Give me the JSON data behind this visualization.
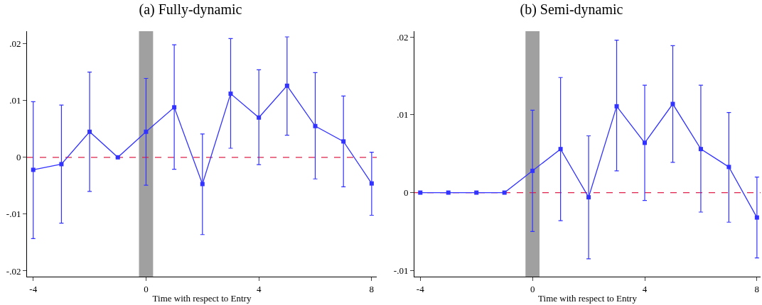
{
  "chart_data": [
    {
      "type": "line",
      "title": "(a) Fully-dynamic",
      "xlabel": "Time with respect to Entry",
      "x": [
        -4,
        -3,
        -2,
        -1,
        0,
        1,
        2,
        3,
        4,
        5,
        6,
        7,
        8
      ],
      "series": [
        {
          "color": "#3333ff",
          "values": [
            -0.0022,
            -0.0012,
            0.0045,
            0,
            0.0045,
            0.0088,
            -0.0047,
            0.0112,
            0.007,
            0.0126,
            0.0055,
            0.0028,
            -0.0046
          ],
          "errors": [
            [
              -0.0143,
              0.0098
            ],
            [
              -0.0116,
              0.0092
            ],
            [
              -0.006,
              0.015
            ],
            null,
            [
              -0.0049,
              0.0139
            ],
            [
              -0.0021,
              0.0198
            ],
            [
              -0.0136,
              0.0041
            ],
            [
              0.0016,
              0.0209
            ],
            [
              -0.0013,
              0.0154
            ],
            [
              0.0039,
              0.0212
            ],
            [
              -0.0038,
              0.0149
            ],
            [
              -0.0052,
              0.0108
            ],
            [
              -0.0102,
              0.0009
            ]
          ]
        }
      ],
      "marker": "square",
      "line_style": "solid",
      "xlim": [
        -4.22,
        8.18
      ],
      "xticks": [
        -4,
        0,
        4,
        8
      ],
      "ylim": [
        -0.021,
        0.0222
      ],
      "yticks": [
        {
          "value": -0.02,
          "label": "-.02"
        },
        {
          "value": -0.01,
          "label": "-.01"
        },
        0,
        {
          "value": 0.01,
          "label": ".01"
        },
        {
          "value": 0.02,
          "label": ".02"
        }
      ],
      "ref_lines": [
        {
          "axis": "y",
          "value": 0,
          "color": "#e0204a",
          "line_style": "dashed"
        }
      ],
      "bands": [
        {
          "axis": "x",
          "from": -0.25,
          "to": 0.25,
          "color": "#a0a0a0"
        }
      ]
    },
    {
      "type": "line",
      "title": "(b) Semi-dynamic",
      "xlabel": "Time with respect to Entry",
      "x": [
        -4,
        -3,
        -2,
        -1,
        0,
        1,
        2,
        3,
        4,
        5,
        6,
        7,
        8
      ],
      "series": [
        {
          "color": "#3333ff",
          "values": [
            0,
            0,
            0,
            0,
            0.0028,
            0.0056,
            -0.0006,
            0.0111,
            0.0064,
            0.0114,
            0.0056,
            0.0033,
            -0.0032
          ],
          "errors": [
            null,
            null,
            null,
            null,
            [
              -0.005,
              0.0106
            ],
            [
              -0.0036,
              0.0148
            ],
            [
              -0.0085,
              0.0073
            ],
            [
              0.0028,
              0.0196
            ],
            [
              -0.001,
              0.0138
            ],
            [
              0.0039,
              0.0189
            ],
            [
              -0.0025,
              0.0138
            ],
            [
              -0.0038,
              0.0103
            ],
            [
              -0.0084,
              0.002
            ]
          ]
        }
      ],
      "marker": "square",
      "line_style": "solid",
      "xlim": [
        -4.21,
        8.13
      ],
      "xticks": [
        -4,
        0,
        4,
        8
      ],
      "ylim": [
        -0.0108,
        0.02075
      ],
      "yticks": [
        {
          "value": -0.01,
          "label": "-.01"
        },
        0,
        {
          "value": 0.01,
          "label": ".01"
        },
        {
          "value": 0.02,
          "label": ".02"
        }
      ],
      "ref_lines": [
        {
          "axis": "y",
          "value": 0,
          "color": "#e0204a",
          "line_style": "dashed"
        }
      ],
      "bands": [
        {
          "axis": "x",
          "from": -0.25,
          "to": 0.25,
          "color": "#a0a0a0"
        }
      ]
    }
  ]
}
